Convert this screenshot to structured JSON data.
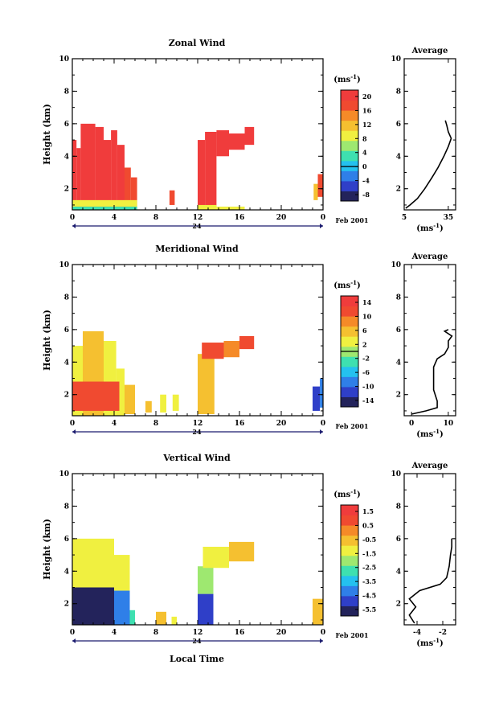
{
  "figure": {
    "date_label": "Feb 2001",
    "day_label": "24",
    "xlabel_bottom": "Local Time"
  },
  "chart_data": [
    {
      "type": "heatmap",
      "title": "Zonal Wind",
      "ylabel": "Height (km)",
      "xlim": [
        0,
        24
      ],
      "ylim": [
        0.7,
        10
      ],
      "xticks": [
        "0",
        "4",
        "8",
        "12",
        "16",
        "20",
        "0"
      ],
      "yticks": [
        "2",
        "4",
        "6",
        "8",
        "10"
      ],
      "colorbar": {
        "unit_label": "(ms-1)",
        "ticks": [
          "20",
          "16",
          "12",
          "8",
          "4",
          "0",
          "-4",
          "-8"
        ],
        "range": [
          -10,
          22
        ],
        "colors": [
          "#23235b",
          "#2f3fc8",
          "#2f7fe8",
          "#24c1ef",
          "#3ee0b0",
          "#9ee870",
          "#f0f040",
          "#f5c030",
          "#f58a28",
          "#f04a30",
          "#f03c3c"
        ]
      },
      "cells": [
        {
          "t0": 0.0,
          "t1": 0.4,
          "h0": 0.7,
          "h1": 5.0,
          "v": 20
        },
        {
          "t0": 0.4,
          "t1": 0.8,
          "h0": 0.7,
          "h1": 4.5,
          "v": 20
        },
        {
          "t0": 0.8,
          "t1": 2.2,
          "h0": 0.7,
          "h1": 6.0,
          "v": 21
        },
        {
          "t0": 2.2,
          "t1": 3.0,
          "h0": 0.7,
          "h1": 5.8,
          "v": 21
        },
        {
          "t0": 3.0,
          "t1": 3.7,
          "h0": 0.7,
          "h1": 5.0,
          "v": 20
        },
        {
          "t0": 3.7,
          "t1": 4.3,
          "h0": 0.7,
          "h1": 5.6,
          "v": 21
        },
        {
          "t0": 4.3,
          "t1": 5.0,
          "h0": 0.7,
          "h1": 4.7,
          "v": 20
        },
        {
          "t0": 5.0,
          "t1": 5.6,
          "h0": 0.7,
          "h1": 3.3,
          "v": 19
        },
        {
          "t0": 5.6,
          "t1": 6.2,
          "h0": 0.7,
          "h1": 2.7,
          "v": 18
        },
        {
          "t0": 9.3,
          "t1": 9.8,
          "h0": 1.0,
          "h1": 1.9,
          "v": 18
        },
        {
          "t0": 12.0,
          "t1": 12.7,
          "h0": 0.9,
          "h1": 5.0,
          "v": 20
        },
        {
          "t0": 12.7,
          "t1": 13.8,
          "h0": 0.9,
          "h1": 5.5,
          "v": 21
        },
        {
          "t0": 13.8,
          "t1": 15.0,
          "h0": 4.0,
          "h1": 5.6,
          "v": 21
        },
        {
          "t0": 15.0,
          "t1": 16.5,
          "h0": 4.4,
          "h1": 5.4,
          "v": 21
        },
        {
          "t0": 16.5,
          "t1": 17.4,
          "h0": 4.7,
          "h1": 5.8,
          "v": 20
        },
        {
          "t0": 23.1,
          "t1": 23.5,
          "h0": 1.3,
          "h1": 2.3,
          "v": 12
        },
        {
          "t0": 23.5,
          "t1": 24.0,
          "h0": 1.5,
          "h1": 2.9,
          "v": 19
        },
        {
          "t0": 0.0,
          "t1": 6.2,
          "h0": 0.9,
          "h1": 1.3,
          "v": 10
        },
        {
          "t0": 0.0,
          "t1": 6.2,
          "h0": 0.7,
          "h1": 0.9,
          "v": 2
        },
        {
          "t0": 12.0,
          "t1": 13.8,
          "h0": 0.7,
          "h1": 1.0,
          "v": 10
        },
        {
          "t0": 13.8,
          "t1": 16.5,
          "h0": 0.7,
          "h1": 0.9,
          "v": 8
        }
      ],
      "profile": {
        "title": "Average",
        "xlabel": "(ms-1)",
        "xlim": [
          5,
          40
        ],
        "xticks": [
          "5",
          "35"
        ],
        "yticks": [
          "2",
          "4",
          "6",
          "8",
          "10"
        ],
        "points": [
          [
            6,
            0.8
          ],
          [
            9,
            1.0
          ],
          [
            14,
            1.4
          ],
          [
            19,
            2.0
          ],
          [
            24,
            2.7
          ],
          [
            28,
            3.3
          ],
          [
            32,
            4.0
          ],
          [
            35,
            4.6
          ],
          [
            37,
            5.1
          ],
          [
            35,
            5.5
          ],
          [
            34,
            5.9
          ],
          [
            33,
            6.2
          ]
        ]
      }
    },
    {
      "type": "heatmap",
      "title": "Meridional Wind",
      "ylabel": "Height (km)",
      "xlim": [
        0,
        24
      ],
      "ylim": [
        0.7,
        10
      ],
      "xticks": [
        "0",
        "4",
        "8",
        "12",
        "16",
        "20",
        "0"
      ],
      "yticks": [
        "2",
        "4",
        "6",
        "8",
        "10"
      ],
      "colorbar": {
        "unit_label": "(ms-1)",
        "ticks": [
          "14",
          "10",
          "6",
          "2",
          "-2",
          "-6",
          "-10",
          "-14"
        ],
        "range": [
          -16,
          16
        ],
        "colors": [
          "#23235b",
          "#2f3fc8",
          "#2f7fe8",
          "#24c1ef",
          "#3ee0b0",
          "#9ee870",
          "#f0f040",
          "#f5c030",
          "#f58a28",
          "#f04a30",
          "#f03c3c"
        ]
      },
      "cells": [
        {
          "t0": 0.0,
          "t1": 1.0,
          "h0": 0.7,
          "h1": 5.0,
          "v": 4
        },
        {
          "t0": 1.0,
          "t1": 3.0,
          "h0": 0.7,
          "h1": 5.9,
          "v": 6
        },
        {
          "t0": 3.0,
          "t1": 4.2,
          "h0": 0.7,
          "h1": 5.3,
          "v": 4
        },
        {
          "t0": 4.2,
          "t1": 5.0,
          "h0": 0.7,
          "h1": 3.6,
          "v": 4
        },
        {
          "t0": 0.0,
          "t1": 4.5,
          "h0": 1.0,
          "h1": 2.8,
          "v": 12
        },
        {
          "t0": 5.0,
          "t1": 6.0,
          "h0": 0.8,
          "h1": 2.6,
          "v": 7
        },
        {
          "t0": 7.0,
          "t1": 7.6,
          "h0": 0.9,
          "h1": 1.6,
          "v": 6
        },
        {
          "t0": 8.4,
          "t1": 9.0,
          "h0": 0.9,
          "h1": 2.0,
          "v": 4
        },
        {
          "t0": 9.6,
          "t1": 10.2,
          "h0": 1.0,
          "h1": 2.0,
          "v": 3
        },
        {
          "t0": 12.0,
          "t1": 13.6,
          "h0": 0.8,
          "h1": 4.5,
          "v": 6
        },
        {
          "t0": 12.4,
          "t1": 14.5,
          "h0": 4.2,
          "h1": 5.2,
          "v": 12
        },
        {
          "t0": 14.5,
          "t1": 16.0,
          "h0": 4.3,
          "h1": 5.3,
          "v": 10
        },
        {
          "t0": 16.0,
          "t1": 17.4,
          "h0": 4.8,
          "h1": 5.6,
          "v": 12
        },
        {
          "t0": 23.0,
          "t1": 23.7,
          "h0": 1.0,
          "h1": 2.5,
          "v": -12
        },
        {
          "t0": 23.7,
          "t1": 24.0,
          "h0": 1.2,
          "h1": 3.0,
          "v": -9
        }
      ],
      "profile": {
        "title": "Average",
        "xlabel": "(ms-1)",
        "xlim": [
          -2,
          12
        ],
        "xticks": [
          "0",
          "10"
        ],
        "yticks": [
          "2",
          "4",
          "6",
          "8",
          "10"
        ],
        "points": [
          [
            0,
            0.8
          ],
          [
            4,
            1.0
          ],
          [
            7,
            1.2
          ],
          [
            7,
            1.6
          ],
          [
            6,
            2.3
          ],
          [
            6,
            3.0
          ],
          [
            6,
            3.7
          ],
          [
            7,
            4.2
          ],
          [
            9,
            4.5
          ],
          [
            10,
            4.9
          ],
          [
            10,
            5.3
          ],
          [
            11,
            5.6
          ],
          [
            9,
            5.9
          ],
          [
            10,
            6.0
          ]
        ]
      }
    },
    {
      "type": "heatmap",
      "title": "Vertical Wind",
      "ylabel": "Height (km)",
      "xlim": [
        0,
        24
      ],
      "ylim": [
        0.7,
        10
      ],
      "xticks": [
        "0",
        "4",
        "8",
        "12",
        "16",
        "20",
        "0"
      ],
      "yticks": [
        "2",
        "4",
        "6",
        "8",
        "10"
      ],
      "colorbar": {
        "unit_label": "(ms-1)",
        "ticks": [
          "1.5",
          "0.5",
          "-0.5",
          "-1.5",
          "-2.5",
          "-3.5",
          "-4.5",
          "-5.5"
        ],
        "range": [
          -6.5,
          2.5
        ],
        "colors": [
          "#23235b",
          "#2f3fc8",
          "#2f7fe8",
          "#24c1ef",
          "#3ee0b0",
          "#9ee870",
          "#f0f040",
          "#f5c030",
          "#f58a28",
          "#f04a30",
          "#f03c3c"
        ]
      },
      "cells": [
        {
          "t0": 0.0,
          "t1": 4.0,
          "h0": 3.0,
          "h1": 6.0,
          "v": -0.8
        },
        {
          "t0": 4.0,
          "t1": 5.5,
          "h0": 2.8,
          "h1": 5.0,
          "v": -1.5
        },
        {
          "t0": 0.0,
          "t1": 4.0,
          "h0": 0.7,
          "h1": 3.0,
          "v": -6.0
        },
        {
          "t0": 4.0,
          "t1": 5.5,
          "h0": 0.7,
          "h1": 2.8,
          "v": -4.5
        },
        {
          "t0": 5.5,
          "t1": 6.0,
          "h0": 0.7,
          "h1": 1.6,
          "v": -2.5
        },
        {
          "t0": 8.0,
          "t1": 9.0,
          "h0": 0.7,
          "h1": 1.5,
          "v": -0.5
        },
        {
          "t0": 9.5,
          "t1": 10.0,
          "h0": 0.7,
          "h1": 1.2,
          "v": -1.0
        },
        {
          "t0": 12.0,
          "t1": 13.5,
          "h0": 0.7,
          "h1": 2.6,
          "v": -5.5
        },
        {
          "t0": 12.0,
          "t1": 13.5,
          "h0": 2.6,
          "h1": 4.3,
          "v": -1.8
        },
        {
          "t0": 12.5,
          "t1": 15.0,
          "h0": 4.2,
          "h1": 5.5,
          "v": -0.9
        },
        {
          "t0": 15.0,
          "t1": 17.4,
          "h0": 4.6,
          "h1": 5.8,
          "v": -0.6
        },
        {
          "t0": 23.0,
          "t1": 24.0,
          "h0": 0.7,
          "h1": 2.3,
          "v": -0.5
        }
      ],
      "profile": {
        "title": "Average",
        "xlabel": "(ms-1)",
        "xlim": [
          -5,
          -1
        ],
        "xticks": [
          "-4",
          "-2"
        ],
        "yticks": [
          "2",
          "4",
          "6",
          "8",
          "10"
        ],
        "points": [
          [
            -4.2,
            0.8
          ],
          [
            -4.6,
            1.3
          ],
          [
            -4.1,
            1.8
          ],
          [
            -4.6,
            2.3
          ],
          [
            -3.8,
            2.8
          ],
          [
            -2.2,
            3.2
          ],
          [
            -1.7,
            3.6
          ],
          [
            -1.5,
            4.3
          ],
          [
            -1.4,
            5.0
          ],
          [
            -1.3,
            5.5
          ],
          [
            -1.3,
            6.0
          ]
        ]
      }
    }
  ]
}
